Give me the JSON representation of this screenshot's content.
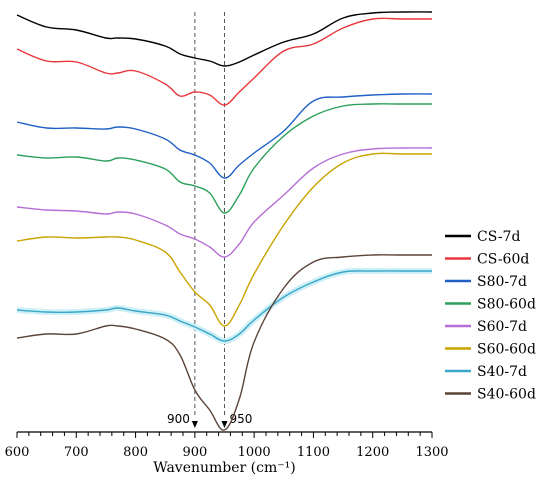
{
  "chart_data": {
    "type": "line",
    "title": "",
    "xlabel": "Wavenumber (cm⁻¹)",
    "ylabel": "",
    "xlim": [
      600,
      1300
    ],
    "x_ticks": [
      "600",
      "700",
      "800",
      "900",
      "1000",
      "1100",
      "1200",
      "1300"
    ],
    "grid": false,
    "legend_position": "right",
    "reference_lines": [
      {
        "x": 900,
        "label": "900"
      },
      {
        "x": 950,
        "label": "950"
      }
    ],
    "x": [
      600,
      650,
      700,
      750,
      770,
      800,
      850,
      875,
      900,
      925,
      950,
      975,
      1000,
      1050,
      1100,
      1150,
      1200,
      1250,
      1300
    ],
    "series": [
      {
        "name": "CS-7d",
        "color": "#000000",
        "values": [
          455,
          443,
          440,
          432,
          432,
          431,
          424,
          416,
          412,
          409,
          404,
          408,
          415,
          428,
          436,
          452,
          457,
          458,
          458
        ]
      },
      {
        "name": "CS-60d",
        "color": "#e8383d",
        "values": [
          421,
          409,
          408,
          397,
          397,
          399,
          386,
          374,
          378,
          375,
          365,
          378,
          392,
          419,
          426,
          442,
          451,
          451,
          451
        ]
      },
      {
        "name": "S80-7d",
        "color": "#1f5fc6",
        "values": [
          348,
          342,
          342,
          341,
          343,
          341,
          331,
          320,
          315,
          307,
          292,
          305,
          317,
          339,
          369,
          373,
          375,
          376,
          376
        ]
      },
      {
        "name": "S80-60d",
        "color": "#2aa05a",
        "values": [
          315,
          312,
          313,
          309,
          312,
          310,
          301,
          288,
          284,
          277,
          257,
          275,
          302,
          334,
          354,
          364,
          366,
          366,
          366
        ]
      },
      {
        "name": "S60-7d",
        "color": "#b66fd6",
        "values": [
          263,
          260,
          259,
          256,
          258,
          256,
          245,
          236,
          231,
          223,
          213,
          226,
          248,
          275,
          302,
          316,
          321,
          322,
          322
        ]
      },
      {
        "name": "S60-60d",
        "color": "#c9a300",
        "values": [
          229,
          233,
          232,
          233,
          233,
          230,
          218,
          198,
          178,
          165,
          144,
          165,
          196,
          245,
          283,
          307,
          316,
          316,
          316
        ]
      },
      {
        "name": "S40-7d",
        "color": "#3aa6c9",
        "values": [
          160,
          158,
          158,
          160,
          162,
          159,
          155,
          149,
          143,
          136,
          129,
          136,
          150,
          173,
          188,
          198,
          199,
          199,
          199
        ]
      },
      {
        "name": "S40-60d",
        "color": "#5b4338",
        "values": [
          132,
          136,
          136,
          144,
          144,
          141,
          131,
          115,
          80,
          60,
          40,
          71,
          128,
          182,
          208,
          213,
          215,
          215,
          215
        ]
      }
    ]
  }
}
